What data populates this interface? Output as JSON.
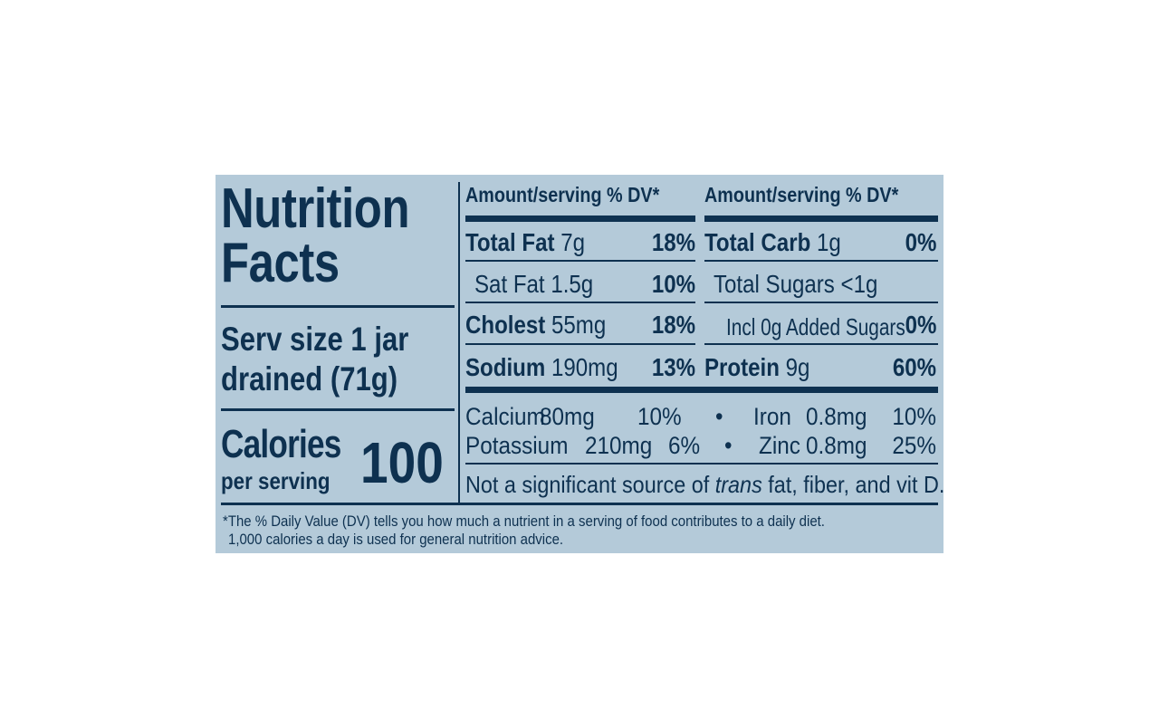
{
  "title": {
    "line1": "Nutrition",
    "line2": "Facts"
  },
  "serving": {
    "line1": "Serv size 1 jar",
    "line2": "drained (71g)"
  },
  "calories": {
    "label": "Calories",
    "sub": "per serving",
    "value": "100"
  },
  "left_table": {
    "header": "Amount/serving % DV*",
    "rows": [
      {
        "name": "Total Fat",
        "amount": "7g",
        "dv": "18%"
      },
      {
        "name": "Sat Fat",
        "amount": "1.5g",
        "dv": "10%"
      },
      {
        "name": "Cholest",
        "amount": "55mg",
        "dv": "18%"
      },
      {
        "name": "Sodium",
        "amount": "190mg",
        "dv": "13%"
      }
    ]
  },
  "right_table": {
    "header": "Amount/serving  % DV*",
    "rows": [
      {
        "name": "Total Carb",
        "amount": "1g",
        "dv": "0%"
      },
      {
        "name": "Total Sugars",
        "amount": "<1g",
        "dv": ""
      },
      {
        "name": "Incl 0g Added Sugars",
        "amount": "",
        "dv": "0%"
      },
      {
        "name": "Protein",
        "amount": "9g",
        "dv": "60%"
      }
    ]
  },
  "minerals": [
    {
      "name": "Calcium",
      "amount": "80mg",
      "dv": "10%"
    },
    {
      "name": "Iron",
      "amount": "0.8mg",
      "dv": "10%"
    },
    {
      "name": "Potassium",
      "amount": "210mg",
      "dv": "6%"
    },
    {
      "name": "Zinc",
      "amount": "0.8mg",
      "dv": "25%"
    }
  ],
  "bullet": "•",
  "note": {
    "prefix": "Not a significant source of ",
    "italic": "trans",
    "suffix": " fat, fiber, and vit D."
  },
  "footnote": {
    "line1": "*The % Daily Value (DV) tells you how much a nutrient in a serving of food contributes to a daily diet.",
    "line2": "1,000 calories a day is used for general nutrition advice."
  },
  "colors": {
    "panel": "#b4cad9",
    "ink": "#0e3150"
  }
}
